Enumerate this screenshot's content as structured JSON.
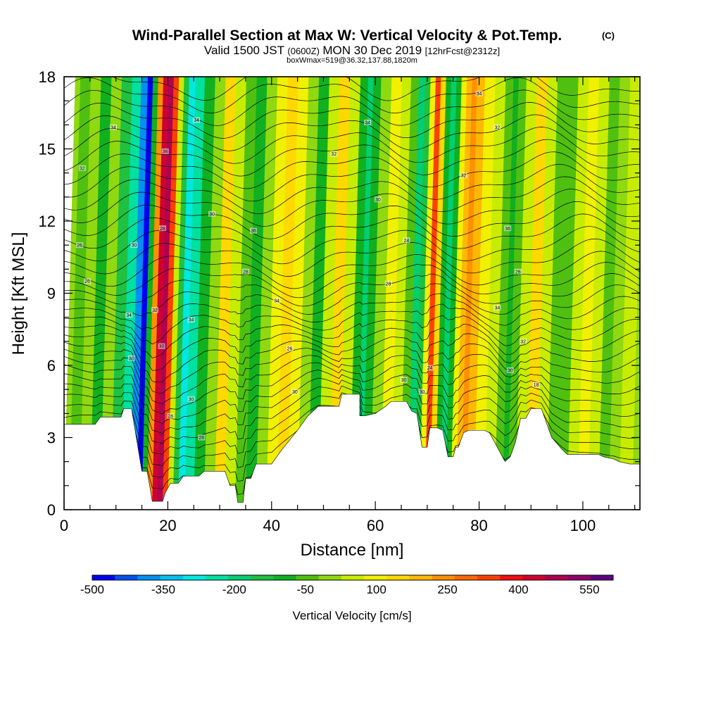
{
  "chart_data": {
    "type": "heatmap",
    "title": "Wind-Parallel Section at Max W: Vertical Velocity & Pot.Temp.",
    "title_mark": "(C)",
    "subtitle": {
      "lead": "Valid 1500 JST",
      "utc": "(0600Z)",
      "date": "MON 30 Dec 2019",
      "fcst": "[12hrFcst@2312z]"
    },
    "box_note": "boxWmax=519@36.32,137.88,1820m",
    "xlabel": "Distance [nm]",
    "ylabel": "Height [Kft MSL]",
    "xlim": [
      0,
      111
    ],
    "ylim": [
      0,
      18
    ],
    "x_ticks": [
      "0",
      "20",
      "40",
      "60",
      "80",
      "100"
    ],
    "y_ticks": [
      "0",
      "3",
      "6",
      "9",
      "12",
      "15",
      "18"
    ],
    "colorbar": {
      "label": "Vertical Velocity [cm/s]",
      "tick_labels": [
        "-500",
        "-350",
        "-200",
        "-50",
        "100",
        "250",
        "400",
        "550"
      ],
      "levels": [
        -500,
        -450,
        -400,
        -350,
        -300,
        -250,
        -200,
        -150,
        -100,
        -50,
        0,
        50,
        100,
        150,
        200,
        250,
        300,
        350,
        400,
        450,
        500,
        550,
        600
      ],
      "colors": [
        "#0000f0",
        "#0050f0",
        "#0090f0",
        "#00c0f0",
        "#00e8e0",
        "#00e0a0",
        "#00d070",
        "#20c040",
        "#10b020",
        "#50c010",
        "#90d810",
        "#c8ec00",
        "#f0f000",
        "#ffd800",
        "#ffb800",
        "#ff9000",
        "#ff6800",
        "#ff4000",
        "#f01010",
        "#d00030",
        "#b00050",
        "#900070",
        "#600080"
      ]
    },
    "terrain": [
      [
        0,
        3.55
      ],
      [
        6,
        3.55
      ],
      [
        7,
        3.85
      ],
      [
        11,
        3.85
      ],
      [
        11.5,
        4.2
      ],
      [
        13,
        4.2
      ],
      [
        14,
        2.9
      ],
      [
        15,
        1.6
      ],
      [
        16,
        1.6
      ],
      [
        16.5,
        1.0
      ],
      [
        17,
        0.35
      ],
      [
        19,
        0.35
      ],
      [
        19.5,
        0.7
      ],
      [
        20.5,
        1.1
      ],
      [
        22,
        1.1
      ],
      [
        23,
        1.4
      ],
      [
        26,
        1.4
      ],
      [
        27,
        1.6
      ],
      [
        31,
        1.6
      ],
      [
        32,
        1.0
      ],
      [
        33,
        1.0
      ],
      [
        33.5,
        0.3
      ],
      [
        34.5,
        0.3
      ],
      [
        35,
        1.3
      ],
      [
        36,
        1.3
      ],
      [
        37,
        1.9
      ],
      [
        40,
        1.9
      ],
      [
        42,
        2.5
      ],
      [
        45,
        3.3
      ],
      [
        47,
        3.9
      ],
      [
        49,
        4.3
      ],
      [
        53,
        4.3
      ],
      [
        53.5,
        4.8
      ],
      [
        57,
        4.8
      ],
      [
        57,
        3.9
      ],
      [
        58,
        3.9
      ],
      [
        60,
        4.0
      ],
      [
        62,
        4.3
      ],
      [
        63,
        4.5
      ],
      [
        66,
        4.5
      ],
      [
        67,
        4.1
      ],
      [
        68,
        4.0
      ],
      [
        69,
        2.6
      ],
      [
        70,
        2.6
      ],
      [
        70.5,
        3.4
      ],
      [
        72,
        3.4
      ],
      [
        73,
        3.3
      ],
      [
        74,
        2.2
      ],
      [
        75,
        2.2
      ],
      [
        75.5,
        2.6
      ],
      [
        76,
        2.6
      ],
      [
        77,
        3.2
      ],
      [
        78,
        3.3
      ],
      [
        81,
        3.3
      ],
      [
        82,
        3.2
      ],
      [
        84,
        2.4
      ],
      [
        85,
        2.0
      ],
      [
        86,
        2.2
      ],
      [
        87,
        2.8
      ],
      [
        88,
        3.8
      ],
      [
        89,
        3.8
      ],
      [
        90,
        4.2
      ],
      [
        92,
        4.2
      ],
      [
        93,
        3.6
      ],
      [
        94,
        3.0
      ],
      [
        96,
        2.5
      ],
      [
        97,
        2.3
      ],
      [
        103,
        2.3
      ],
      [
        104,
        2.2
      ],
      [
        106,
        2.1
      ],
      [
        107,
        2.0
      ],
      [
        109,
        1.9
      ],
      [
        111,
        1.9
      ]
    ],
    "vertical_velocity_columns": [
      {
        "x": 0,
        "w": 0
      },
      {
        "x": 2,
        "w": -40
      },
      {
        "x": 4,
        "w": 10
      },
      {
        "x": 6,
        "w": -60
      },
      {
        "x": 8,
        "w": 20
      },
      {
        "x": 10,
        "w": -120
      },
      {
        "x": 12,
        "w": -250
      },
      {
        "x": 13.5,
        "w": -400
      },
      {
        "x": 14.5,
        "w": -480
      },
      {
        "x": 15.5,
        "w": -80
      },
      {
        "x": 16.5,
        "w": 250
      },
      {
        "x": 17.5,
        "w": 450
      },
      {
        "x": 18.5,
        "w": 519
      },
      {
        "x": 19.5,
        "w": 350
      },
      {
        "x": 20.5,
        "w": 80
      },
      {
        "x": 21.5,
        "w": -150
      },
      {
        "x": 22.5,
        "w": -280
      },
      {
        "x": 24,
        "w": -220
      },
      {
        "x": 26,
        "w": -100
      },
      {
        "x": 28,
        "w": 30
      },
      {
        "x": 30,
        "w": 150
      },
      {
        "x": 32,
        "w": 60
      },
      {
        "x": 34,
        "w": -20
      },
      {
        "x": 36,
        "w": -100
      },
      {
        "x": 38,
        "w": 20
      },
      {
        "x": 40,
        "w": 130
      },
      {
        "x": 42,
        "w": 180
      },
      {
        "x": 44,
        "w": 120
      },
      {
        "x": 46,
        "w": 30
      },
      {
        "x": 48,
        "w": -60
      },
      {
        "x": 50,
        "w": 60
      },
      {
        "x": 52,
        "w": 160
      },
      {
        "x": 54,
        "w": 80
      },
      {
        "x": 56,
        "w": -80
      },
      {
        "x": 57,
        "w": -160
      },
      {
        "x": 58,
        "w": -90
      },
      {
        "x": 60,
        "w": 40
      },
      {
        "x": 62,
        "w": 140
      },
      {
        "x": 64,
        "w": 80
      },
      {
        "x": 65.5,
        "w": -50
      },
      {
        "x": 67,
        "w": -180
      },
      {
        "x": 68,
        "w": -120
      },
      {
        "x": 69,
        "w": 120
      },
      {
        "x": 70,
        "w": 350
      },
      {
        "x": 71,
        "w": 150
      },
      {
        "x": 72,
        "w": -80
      },
      {
        "x": 73,
        "w": -200
      },
      {
        "x": 74,
        "w": -100
      },
      {
        "x": 75,
        "w": 120
      },
      {
        "x": 76,
        "w": 230
      },
      {
        "x": 77,
        "w": 260
      },
      {
        "x": 78,
        "w": 200
      },
      {
        "x": 80,
        "w": 100
      },
      {
        "x": 82,
        "w": 60
      },
      {
        "x": 84,
        "w": -30
      },
      {
        "x": 85,
        "w": -100
      },
      {
        "x": 86,
        "w": -40
      },
      {
        "x": 88,
        "w": 80
      },
      {
        "x": 90,
        "w": 160
      },
      {
        "x": 92,
        "w": 70
      },
      {
        "x": 94,
        "w": -50
      },
      {
        "x": 96,
        "w": -40
      },
      {
        "x": 98,
        "w": 60
      },
      {
        "x": 100,
        "w": 100
      },
      {
        "x": 102,
        "w": 50
      },
      {
        "x": 104,
        "w": -30
      },
      {
        "x": 106,
        "w": 40
      },
      {
        "x": 108,
        "w": 80
      },
      {
        "x": 111,
        "w": 40
      }
    ],
    "theta_contour_labels": [
      {
        "x": 9.5,
        "y": 15.9,
        "text": "34"
      },
      {
        "x": 3.5,
        "y": 14.2,
        "text": "32"
      },
      {
        "x": 3.0,
        "y": 11.0,
        "text": "26"
      },
      {
        "x": 4.5,
        "y": 9.5,
        "text": "26"
      },
      {
        "x": 13.5,
        "y": 11.0,
        "text": "30"
      },
      {
        "x": 12.5,
        "y": 8.1,
        "text": "34"
      },
      {
        "x": 13.0,
        "y": 6.3,
        "text": "30"
      },
      {
        "x": 17.5,
        "y": 8.3,
        "text": "32"
      },
      {
        "x": 18.8,
        "y": 6.8,
        "text": "30"
      },
      {
        "x": 19.0,
        "y": 11.7,
        "text": "28"
      },
      {
        "x": 19.5,
        "y": 14.9,
        "text": "36"
      },
      {
        "x": 25.5,
        "y": 16.2,
        "text": "34"
      },
      {
        "x": 28.5,
        "y": 12.3,
        "text": "30"
      },
      {
        "x": 24.5,
        "y": 7.9,
        "text": "34"
      },
      {
        "x": 24.5,
        "y": 4.6,
        "text": "30"
      },
      {
        "x": 20.5,
        "y": 3.9,
        "text": "28"
      },
      {
        "x": 26.5,
        "y": 3.0,
        "text": "28"
      },
      {
        "x": 36.5,
        "y": 11.6,
        "text": "36"
      },
      {
        "x": 35.0,
        "y": 9.9,
        "text": "28"
      },
      {
        "x": 41.0,
        "y": 8.7,
        "text": "34"
      },
      {
        "x": 43.5,
        "y": 6.7,
        "text": "26"
      },
      {
        "x": 44.5,
        "y": 4.9,
        "text": "30"
      },
      {
        "x": 52.0,
        "y": 14.8,
        "text": "32"
      },
      {
        "x": 58.5,
        "y": 16.1,
        "text": "34"
      },
      {
        "x": 60.5,
        "y": 12.9,
        "text": "30"
      },
      {
        "x": 62.5,
        "y": 9.4,
        "text": "28"
      },
      {
        "x": 66.0,
        "y": 11.2,
        "text": "24"
      },
      {
        "x": 65.5,
        "y": 5.4,
        "text": "30"
      },
      {
        "x": 69.0,
        "y": 4.9,
        "text": "30"
      },
      {
        "x": 70.5,
        "y": 5.9,
        "text": "24"
      },
      {
        "x": 77.0,
        "y": 13.9,
        "text": "32"
      },
      {
        "x": 80.0,
        "y": 17.3,
        "text": "34"
      },
      {
        "x": 83.5,
        "y": 15.9,
        "text": "32"
      },
      {
        "x": 85.5,
        "y": 11.7,
        "text": "36"
      },
      {
        "x": 87.5,
        "y": 9.9,
        "text": "26"
      },
      {
        "x": 83.5,
        "y": 8.4,
        "text": "34"
      },
      {
        "x": 88.5,
        "y": 7.0,
        "text": "32"
      },
      {
        "x": 86.0,
        "y": 5.8,
        "text": "30"
      },
      {
        "x": 91.0,
        "y": 5.2,
        "text": "18"
      }
    ]
  }
}
